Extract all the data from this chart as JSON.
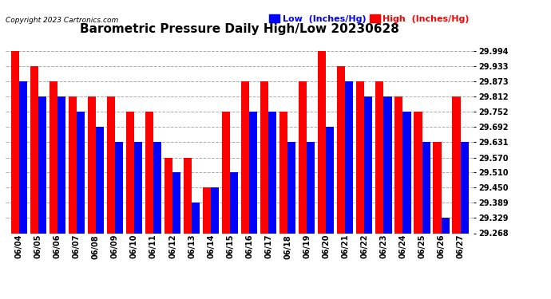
{
  "title": "Barometric Pressure Daily High/Low 20230628",
  "copyright": "Copyright 2023 Cartronics.com",
  "ylabel_low": "Low  (Inches/Hg)",
  "ylabel_high": "High  (Inches/Hg)",
  "background_color": "#ffffff",
  "plot_bg_color": "#ffffff",
  "bar_color_low": "#0000ff",
  "bar_color_high": "#ff0000",
  "dates": [
    "06/04",
    "06/05",
    "06/06",
    "06/07",
    "06/08",
    "06/09",
    "06/10",
    "06/11",
    "06/12",
    "06/13",
    "06/14",
    "06/15",
    "06/16",
    "06/17",
    "06/18",
    "06/19",
    "06/20",
    "06/21",
    "06/22",
    "06/23",
    "06/24",
    "06/25",
    "06/26",
    "06/27"
  ],
  "high_values": [
    29.994,
    29.933,
    29.873,
    29.812,
    29.812,
    29.812,
    29.752,
    29.752,
    29.57,
    29.57,
    29.45,
    29.752,
    29.873,
    29.873,
    29.752,
    29.873,
    29.994,
    29.933,
    29.873,
    29.873,
    29.812,
    29.752,
    29.631,
    29.812
  ],
  "low_values": [
    29.873,
    29.812,
    29.812,
    29.752,
    29.692,
    29.631,
    29.631,
    29.631,
    29.51,
    29.389,
    29.45,
    29.51,
    29.752,
    29.752,
    29.631,
    29.631,
    29.692,
    29.873,
    29.812,
    29.812,
    29.752,
    29.631,
    29.329,
    29.631
  ],
  "ylim_min": 29.268,
  "ylim_max": 30.055,
  "yticks": [
    29.268,
    29.329,
    29.389,
    29.45,
    29.51,
    29.57,
    29.631,
    29.692,
    29.752,
    29.812,
    29.873,
    29.933,
    29.994
  ],
  "grid_color": "#aaaaaa",
  "title_fontsize": 11,
  "tick_fontsize": 7,
  "legend_fontsize": 8,
  "copyright_fontsize": 6.5
}
